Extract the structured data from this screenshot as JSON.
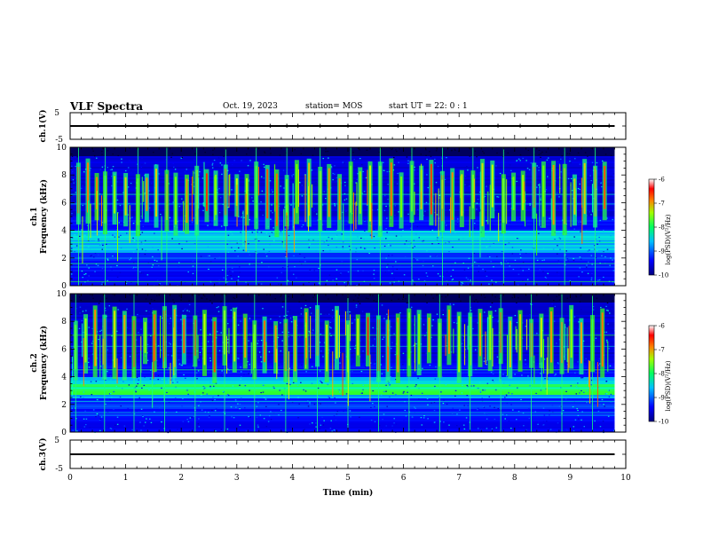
{
  "header": {
    "title": "VLF Spectra",
    "date": "Oct. 19, 2023",
    "station": "station= MOS",
    "start": "start  UT =  22: 0  : 1"
  },
  "chart_data": [
    {
      "type": "line",
      "panel": "ch1-waveform",
      "ylabel": "ch.1(V)",
      "ylim": [
        -5,
        5
      ],
      "yticks": [
        "5",
        "-5"
      ],
      "xlim": [
        0,
        10
      ],
      "series": [
        {
          "x": [
            0,
            9.8
          ],
          "y": [
            0,
            0
          ]
        }
      ],
      "spike_times_min": [
        0.5,
        1.0,
        1.4,
        1.9,
        2.3,
        2.8,
        3.2,
        3.6,
        3.9,
        4.1,
        4.5,
        5.0,
        5.4,
        5.9,
        6.3,
        6.8,
        7.2,
        7.7,
        8.1,
        8.6,
        9.0,
        9.4,
        9.7
      ]
    },
    {
      "type": "heatmap",
      "panel": "ch1-spectrogram",
      "ylabel": "ch.1\nFrequency (kHz)",
      "ylabel_line1": "ch.1",
      "ylabel_line2": "Frequency (kHz)",
      "ylim": [
        0,
        10
      ],
      "yticks": [
        "0",
        "2",
        "4",
        "6",
        "8",
        "10"
      ],
      "xlim": [
        0,
        10
      ],
      "data_extent_min": 9.8,
      "colorbar": {
        "label": "log(PSD)(V²/Hz)",
        "range": [
          -10,
          -6
        ],
        "ticks": [
          "-6",
          "-7",
          "-8",
          "-9",
          "-10"
        ]
      },
      "sferic_times_min": [
        0.15,
        0.32,
        0.48,
        0.63,
        0.8,
        1.0,
        1.22,
        1.38,
        1.55,
        1.74,
        1.9,
        2.1,
        2.28,
        2.46,
        2.62,
        2.8,
        3.0,
        3.18,
        3.35,
        3.55,
        3.72,
        3.9,
        4.08,
        4.3,
        4.5,
        4.66,
        4.85,
        5.05,
        5.22,
        5.4,
        5.58,
        5.78,
        5.96,
        6.15,
        6.32,
        6.5,
        6.7,
        6.88,
        7.05,
        7.25,
        7.42,
        7.6,
        7.8,
        7.98,
        8.15,
        8.35,
        8.52,
        8.7,
        8.9,
        9.08,
        9.26,
        9.45,
        9.62
      ]
    },
    {
      "type": "heatmap",
      "panel": "ch2-spectrogram",
      "ylabel": "ch.2\nFrequency (kHz)",
      "ylabel_line1": "ch.2",
      "ylabel_line2": "Frequency (kHz)",
      "ylim": [
        0,
        10
      ],
      "yticks": [
        "0",
        "2",
        "4",
        "6",
        "8",
        "10"
      ],
      "xlim": [
        0,
        10
      ],
      "data_extent_min": 9.8,
      "colorbar": {
        "label": "log(PSD)(V²/Hz)",
        "range": [
          -10,
          -6
        ],
        "ticks": [
          "-6",
          "-7",
          "-8",
          "-9",
          "-10"
        ]
      },
      "sferic_times_min": [
        0.1,
        0.28,
        0.45,
        0.62,
        0.8,
        0.98,
        1.15,
        1.35,
        1.52,
        1.7,
        1.88,
        2.05,
        2.25,
        2.42,
        2.6,
        2.78,
        2.96,
        3.15,
        3.32,
        3.5,
        3.7,
        3.88,
        4.05,
        4.25,
        4.45,
        4.62,
        4.8,
        5.0,
        5.18,
        5.36,
        5.55,
        5.72,
        5.9,
        6.1,
        6.28,
        6.46,
        6.65,
        6.82,
        7.0,
        7.2,
        7.38,
        7.56,
        7.75,
        7.92,
        8.1,
        8.3,
        8.48,
        8.66,
        8.85,
        9.02,
        9.2,
        9.4,
        9.58
      ]
    },
    {
      "type": "line",
      "panel": "ch3-waveform",
      "ylabel": "ch.3(V)",
      "ylim": [
        -5,
        5
      ],
      "yticks": [
        "5",
        "-5"
      ],
      "xlim": [
        0,
        10
      ],
      "xlabel": "Time  (min)",
      "xticks": [
        "0",
        "1",
        "2",
        "3",
        "4",
        "5",
        "6",
        "7",
        "8",
        "9",
        "10"
      ],
      "series": [
        {
          "x": [
            0,
            9.8
          ],
          "y": [
            0,
            0
          ]
        }
      ]
    }
  ]
}
